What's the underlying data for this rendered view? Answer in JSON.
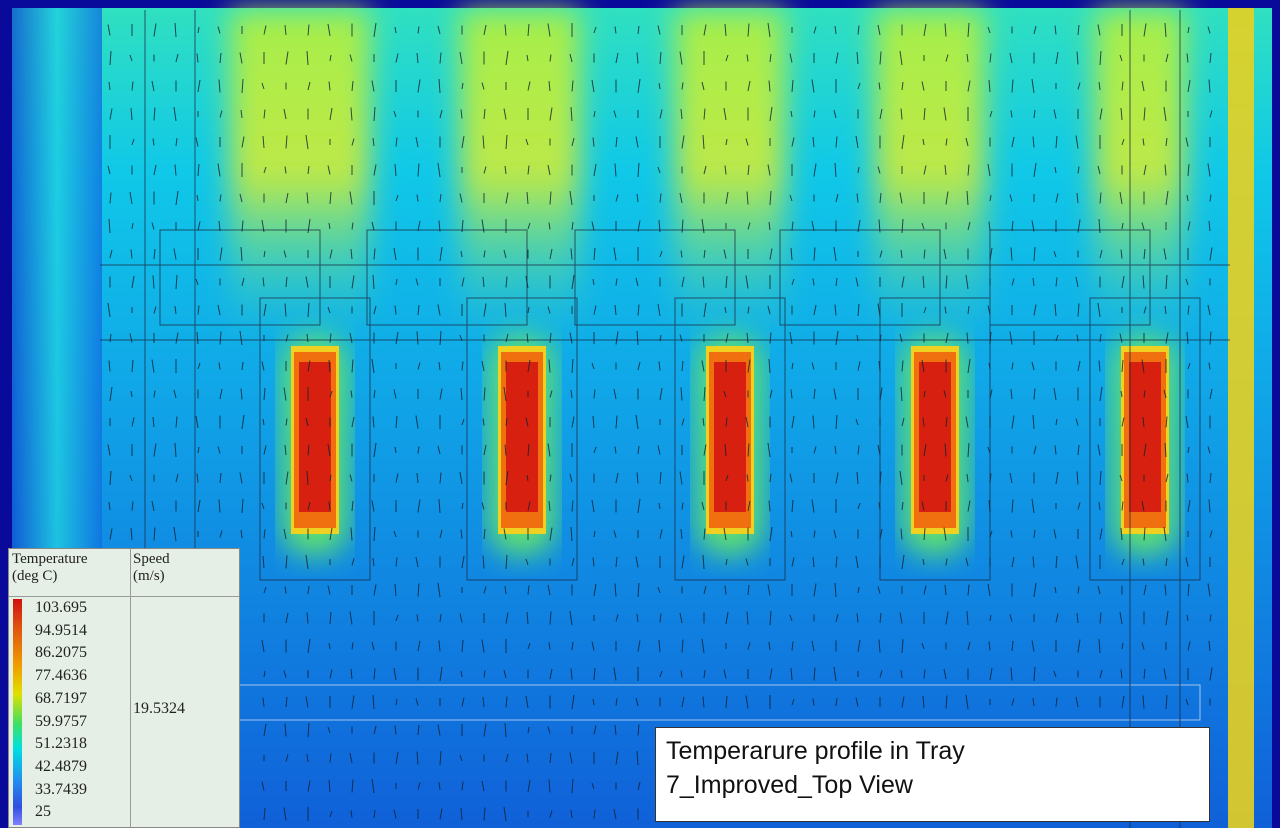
{
  "legend": {
    "temperature_label": "Temperature",
    "temperature_unit": "(deg C)",
    "speed_label": "Speed",
    "speed_unit": "(m/s)",
    "temperature_values": [
      103.695,
      94.9514,
      86.2075,
      77.4636,
      68.7197,
      59.9757,
      51.2318,
      42.4879,
      33.7439,
      25
    ],
    "speed_value": 19.5324
  },
  "caption": {
    "lines": [
      "Temperarure profile in Tray",
      "7_Improved_Top View"
    ]
  }
}
